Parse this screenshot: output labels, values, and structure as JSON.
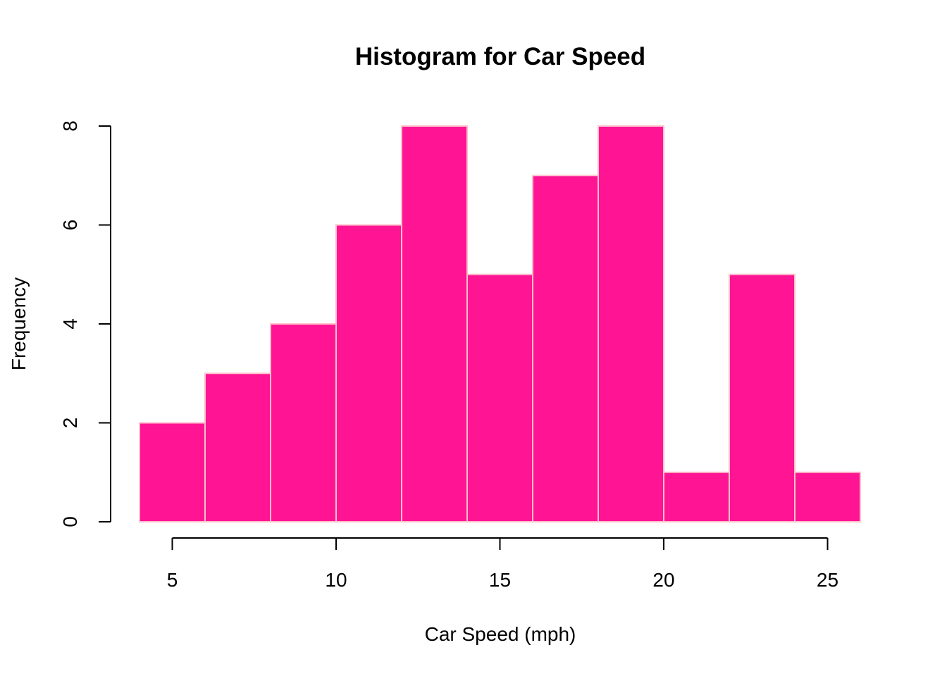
{
  "chart_data": {
    "type": "bar",
    "title": "Histogram for Car Speed",
    "xlabel": "Car Speed (mph)",
    "ylabel": "Frequency",
    "bins": [
      {
        "start": 4,
        "end": 6,
        "count": 2
      },
      {
        "start": 6,
        "end": 8,
        "count": 3
      },
      {
        "start": 8,
        "end": 10,
        "count": 4
      },
      {
        "start": 10,
        "end": 12,
        "count": 6
      },
      {
        "start": 12,
        "end": 14,
        "count": 8
      },
      {
        "start": 14,
        "end": 16,
        "count": 5
      },
      {
        "start": 16,
        "end": 18,
        "count": 7
      },
      {
        "start": 18,
        "end": 20,
        "count": 8
      },
      {
        "start": 20,
        "end": 22,
        "count": 1
      },
      {
        "start": 22,
        "end": 24,
        "count": 5
      },
      {
        "start": 24,
        "end": 26,
        "count": 1
      }
    ],
    "xlim": [
      4,
      26
    ],
    "ylim": [
      0,
      8
    ],
    "xticks": [
      5,
      10,
      15,
      20,
      25
    ],
    "yticks": [
      0,
      2,
      4,
      6,
      8
    ],
    "bar_fill": "#ff1493",
    "bar_border": "#ffc0cb",
    "grid": false,
    "legend": "none"
  }
}
